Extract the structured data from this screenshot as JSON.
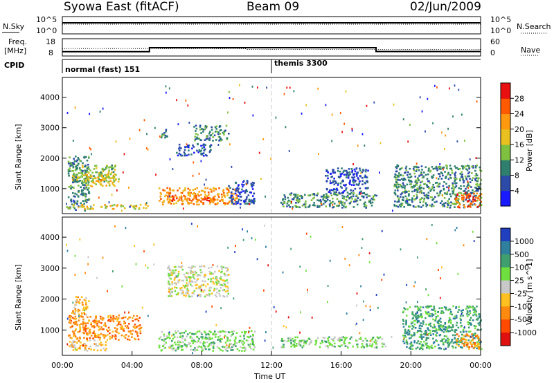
{
  "header": {
    "title": "Syowa East (fitACF)",
    "beam": "Beam 09",
    "date": "02/Jun/2009"
  },
  "chart_data": [
    {
      "type": "line",
      "panel": "noise",
      "left_label": "N.Sky",
      "right_label": "N.Search",
      "left_ticks": [
        "10^5",
        "10^0"
      ],
      "right_ticks": [
        "10^5",
        "10^0"
      ],
      "series": [
        {
          "values_note": "",
          "x": [
            0,
            24
          ],
          "y": [
            4.0,
            4.0
          ]
        },
        {
          "x": [
            0,
            24
          ],
          "y": [
            4.0,
            4.0
          ]
        }
      ]
    },
    {
      "type": "line",
      "panel": "frequency",
      "left_label": "Freq.",
      "left_unit": "[MHz]",
      "right_label": "Nave",
      "left_ticks": [
        "18",
        "8"
      ],
      "right_ticks": [
        "60",
        "0"
      ],
      "series": [
        {
          "x": [
            0,
            5,
            5,
            18,
            18,
            24
          ],
          "y": [
            10.5,
            10.5,
            12.8,
            12.8,
            10.6,
            10.6
          ]
        },
        {
          "x": [
            0,
            10.5,
            10.6,
            24
          ],
          "y": [
            12.3,
            12.3,
            11.8,
            11.8
          ]
        }
      ]
    },
    {
      "type": "table",
      "panel": "cpid",
      "label": "CPID",
      "modes": [
        {
          "start": 0,
          "text": "normal (fast) 151"
        },
        {
          "start": 12,
          "text": "themis 3300"
        }
      ]
    },
    {
      "type": "heatmap",
      "panel": "power",
      "ylabel": "Slant Range [km]",
      "ylim": [
        180,
        4650
      ],
      "yticks": [
        "1000",
        "2000",
        "3000",
        "4000"
      ],
      "xlim": [
        0,
        24
      ],
      "colorbar": {
        "label": "Power [dB]",
        "ticks": [
          "4",
          "8",
          "12",
          "16",
          "20",
          "24",
          "28"
        ]
      },
      "colors": [
        "#1a1aff",
        "#2c4aa8",
        "#2f7f6f",
        "#7fc040",
        "#e8c020",
        "#ff9a10",
        "#ff5a00",
        "#e81010"
      ],
      "regions": [
        {
          "t0": 0.3,
          "t1": 1.5,
          "r0": 300,
          "r1": 2100,
          "level": 2
        },
        {
          "t0": 0.5,
          "t1": 3.2,
          "r0": 1200,
          "r1": 1800,
          "level": 3
        },
        {
          "t0": 1.2,
          "t1": 3.0,
          "r0": 1100,
          "r1": 1600,
          "level": 4
        },
        {
          "t0": 0.2,
          "t1": 5.0,
          "r0": 350,
          "r1": 500,
          "level": 4
        },
        {
          "t0": 5.5,
          "t1": 10.0,
          "r0": 500,
          "r1": 1050,
          "level": 5
        },
        {
          "t0": 6.0,
          "t1": 9.0,
          "r0": 600,
          "r1": 800,
          "level": 6
        },
        {
          "t0": 7.5,
          "t1": 9.5,
          "r0": 2600,
          "r1": 3100,
          "level": 2
        },
        {
          "t0": 6.5,
          "t1": 8.5,
          "r0": 2100,
          "r1": 2500,
          "level": 1
        },
        {
          "t0": 5.5,
          "t1": 6.0,
          "r0": 2700,
          "r1": 3000,
          "level": 2
        },
        {
          "t0": 9.5,
          "t1": 11.0,
          "r0": 500,
          "r1": 1300,
          "level": 1
        },
        {
          "t0": 12.5,
          "t1": 18.0,
          "r0": 400,
          "r1": 900,
          "level": 2
        },
        {
          "t0": 15.0,
          "t1": 17.5,
          "r0": 900,
          "r1": 1700,
          "level": 1
        },
        {
          "t0": 19.0,
          "t1": 24.0,
          "r0": 400,
          "r1": 1800,
          "level": 2
        },
        {
          "t0": 22.5,
          "t1": 24.0,
          "r0": 400,
          "r1": 900,
          "level": 6
        }
      ]
    },
    {
      "type": "heatmap",
      "panel": "velocity",
      "ylabel": "Slant Range [km]",
      "ylim": [
        180,
        4650
      ],
      "yticks": [
        "1000",
        "2000",
        "3000",
        "4000"
      ],
      "xlim": [
        0,
        24
      ],
      "xticks": [
        "00:00",
        "04:00",
        "08:00",
        "12:00",
        "16:00",
        "20:00",
        "00:00"
      ],
      "xlabel": "Time UT",
      "colorbar": {
        "label": "Velocity [m s^-1]",
        "ticks": [
          "1000",
          "500",
          "100",
          "25",
          "-25",
          "-100",
          "-500",
          "-1000"
        ]
      },
      "colors": [
        "#2040c0",
        "#2f7f9f",
        "#3f9f6f",
        "#6fdf3f",
        "#c8c8c8",
        "#ffc020",
        "#ff8a10",
        "#ff4a00",
        "#e01010"
      ],
      "regions": [
        {
          "t0": 0.3,
          "t1": 4.5,
          "r0": 700,
          "r1": 1500,
          "level": 6
        },
        {
          "t0": 0.3,
          "t1": 2.5,
          "r0": 350,
          "r1": 700,
          "level": 5
        },
        {
          "t0": 0.5,
          "t1": 1.5,
          "r0": 1500,
          "r1": 2100,
          "level": 5
        },
        {
          "t0": 5.5,
          "t1": 11.0,
          "r0": 350,
          "r1": 1000,
          "level": 3
        },
        {
          "t0": 6.0,
          "t1": 9.5,
          "r0": 2100,
          "r1": 3100,
          "level": 4
        },
        {
          "t0": 12.5,
          "t1": 18.5,
          "r0": 450,
          "r1": 800,
          "level": 3
        },
        {
          "t0": 19.5,
          "t1": 24.0,
          "r0": 400,
          "r1": 1800,
          "level": 2
        },
        {
          "t0": 22.5,
          "t1": 24.0,
          "r0": 400,
          "r1": 900,
          "level": 6
        }
      ]
    }
  ]
}
